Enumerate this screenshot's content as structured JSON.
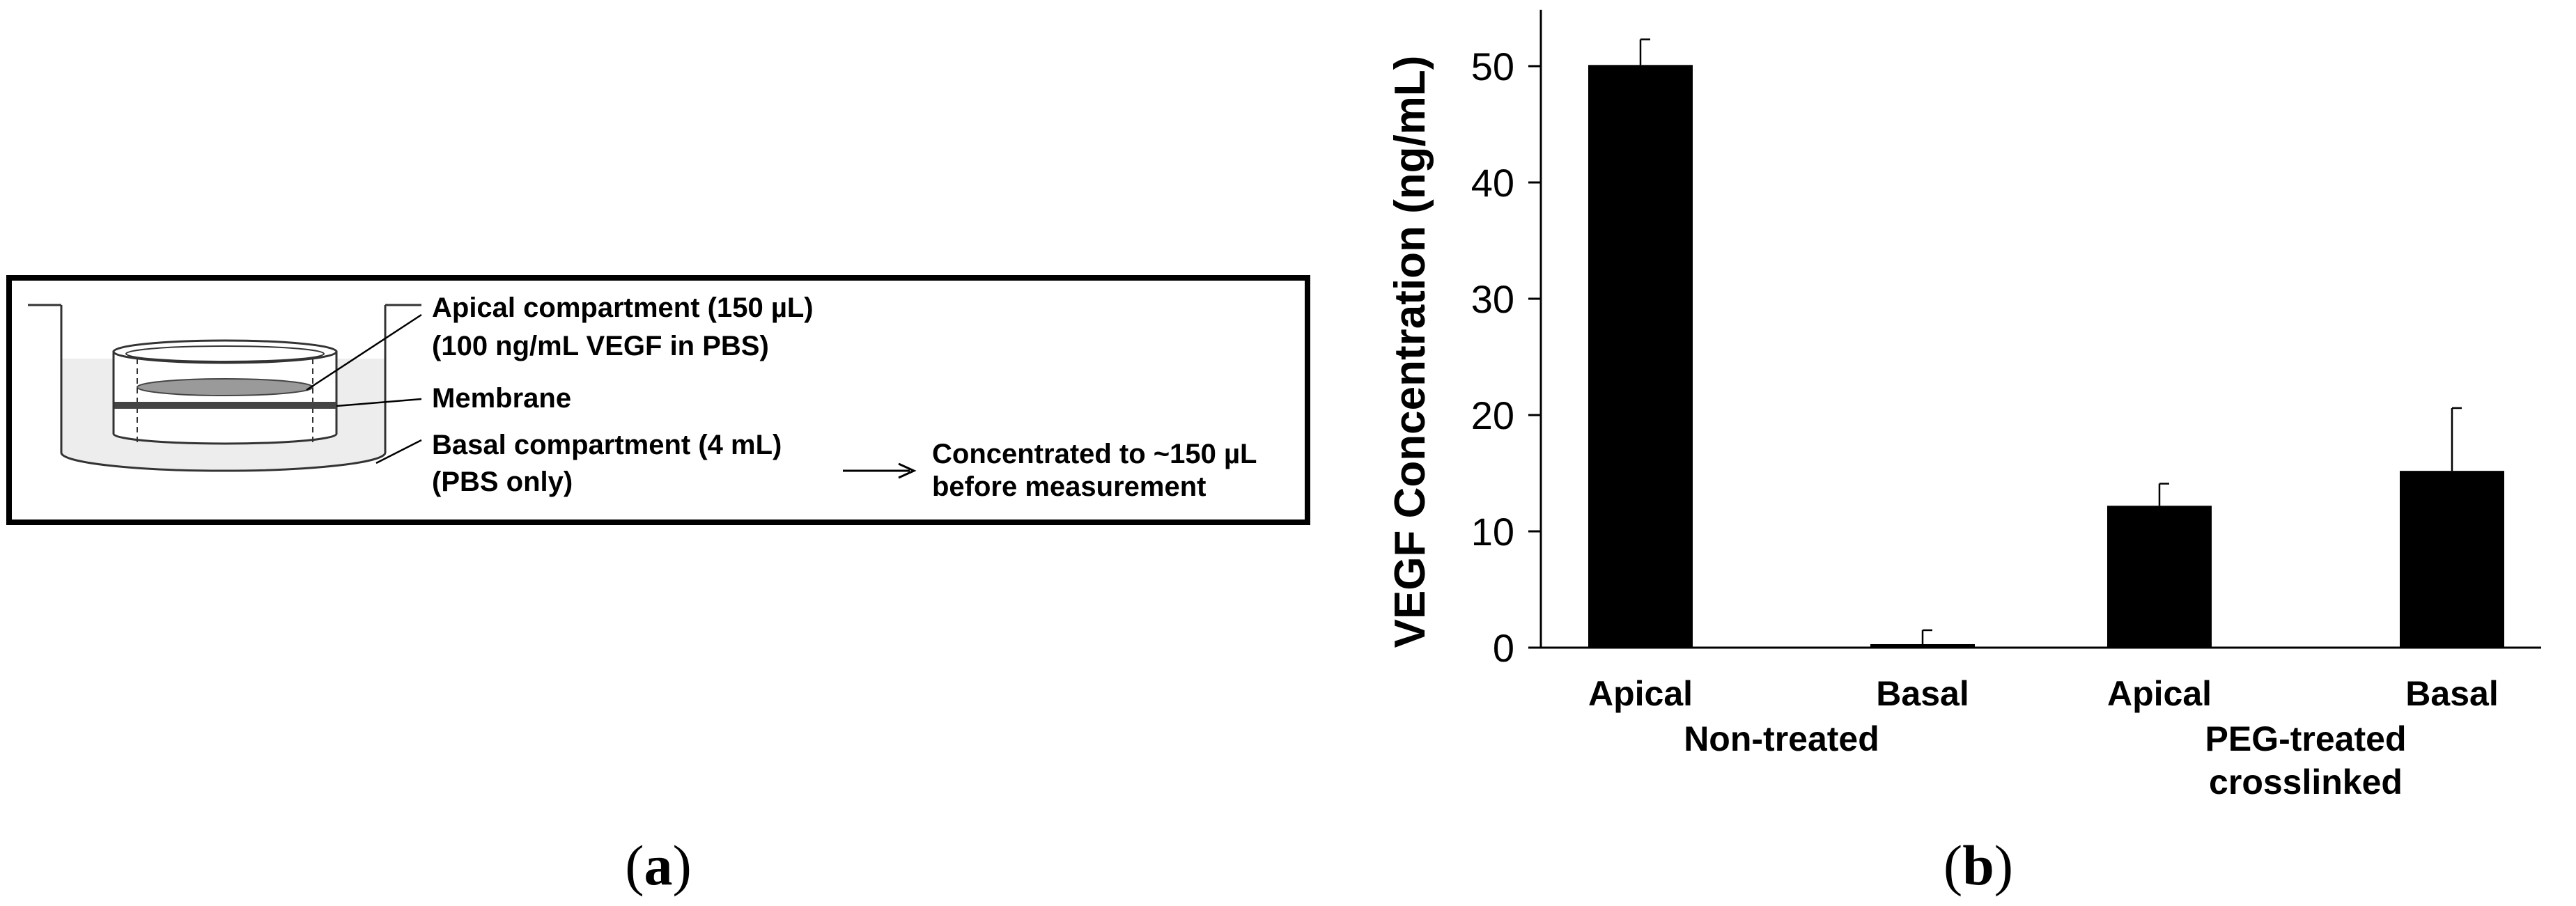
{
  "diagram": {
    "apical_line1": "Apical compartment (150 µL)",
    "apical_line2": "(100 ng/mL VEGF in PBS)",
    "membrane": "Membrane",
    "basal_line1": "Basal compartment (4 mL)",
    "basal_line2": "(PBS only)",
    "conc_line1": "Concentrated to ~150 µL",
    "conc_line2": "before measurement"
  },
  "panel_labels": {
    "a_open": "(",
    "a_letter": "a",
    "a_close": ")",
    "b_open": "(",
    "b_letter": "b",
    "b_close": ")"
  },
  "chart_data": {
    "type": "bar",
    "categories": [
      "Apical",
      "Basal",
      "Apical",
      "Basal"
    ],
    "groups": [
      {
        "name": "Non-treated",
        "lines": [
          "Non-treated"
        ],
        "categories": [
          0,
          1
        ]
      },
      {
        "name": "PEG-treated crosslinked",
        "lines": [
          "PEG-treated",
          "crosslinked"
        ],
        "categories": [
          2,
          3
        ]
      }
    ],
    "values": [
      50.1,
      0.3,
      12.2,
      15.2
    ],
    "errors": [
      2.2,
      1.2,
      1.9,
      5.4
    ],
    "ylabel": "VEGF Concentration (ng/mL)",
    "xlabel": "",
    "ylim": [
      0,
      55
    ],
    "yticks": [
      0,
      10,
      20,
      30,
      40,
      50
    ],
    "bar_color": "#000000",
    "grid": false
  }
}
